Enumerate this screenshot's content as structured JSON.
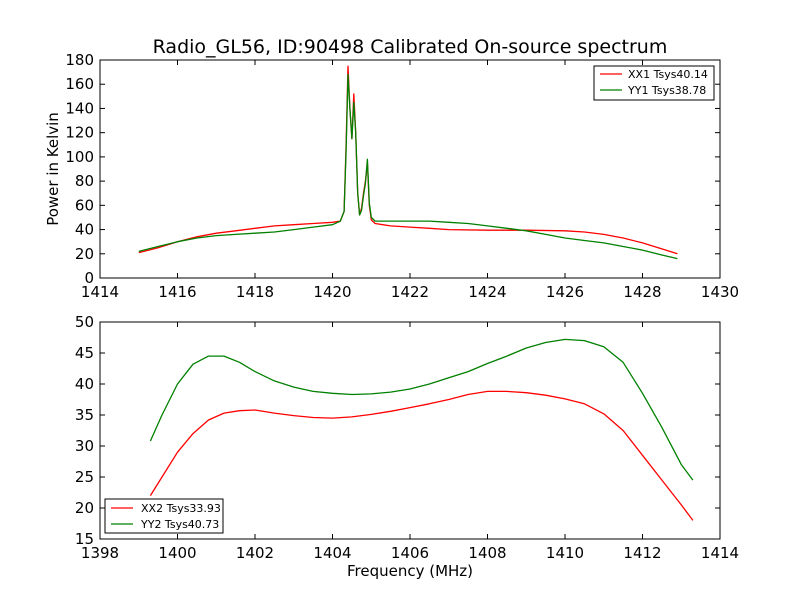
{
  "chart_data": [
    {
      "type": "line",
      "title": "Radio_GL56, ID:90498 Calibrated On-source spectrum",
      "xlabel": "",
      "ylabel": "Power in Kelvin",
      "xlim": [
        1414,
        1430
      ],
      "ylim": [
        0,
        180
      ],
      "xticks": [
        1414,
        1416,
        1418,
        1420,
        1422,
        1424,
        1426,
        1428,
        1430
      ],
      "yticks": [
        0,
        20,
        40,
        60,
        80,
        100,
        120,
        140,
        160,
        180
      ],
      "grid": false,
      "legend": "top-right",
      "series": [
        {
          "name": "XX1 Tsys40.14",
          "color": "#ff0000",
          "x": [
            1415.0,
            1415.5,
            1416.0,
            1416.5,
            1417.0,
            1417.5,
            1418.0,
            1418.5,
            1419.0,
            1419.5,
            1420.0,
            1420.2,
            1420.3,
            1420.35,
            1420.4,
            1420.45,
            1420.5,
            1420.55,
            1420.6,
            1420.65,
            1420.7,
            1420.75,
            1420.8,
            1420.85,
            1420.9,
            1420.95,
            1421.0,
            1421.1,
            1421.5,
            1422.0,
            1422.5,
            1423.0,
            1424.0,
            1425.0,
            1426.0,
            1426.5,
            1427.0,
            1427.5,
            1428.0,
            1428.5,
            1428.9
          ],
          "y": [
            21,
            25,
            30,
            34,
            37,
            39,
            41,
            43,
            44,
            45,
            46,
            47,
            55,
            110,
            175,
            140,
            115,
            152,
            120,
            70,
            52,
            58,
            70,
            80,
            95,
            60,
            48,
            45,
            43,
            42,
            41,
            40,
            39.5,
            39.5,
            39,
            38,
            36,
            33,
            29,
            24,
            20
          ]
        },
        {
          "name": "YY1 Tsys38.78",
          "color": "#008000",
          "x": [
            1415.0,
            1415.5,
            1416.0,
            1416.5,
            1417.0,
            1417.5,
            1418.0,
            1418.5,
            1419.0,
            1419.5,
            1420.0,
            1420.2,
            1420.3,
            1420.35,
            1420.4,
            1420.45,
            1420.5,
            1420.55,
            1420.6,
            1420.65,
            1420.7,
            1420.75,
            1420.8,
            1420.85,
            1420.9,
            1420.95,
            1421.0,
            1421.1,
            1421.5,
            1422.0,
            1422.5,
            1423.0,
            1423.5,
            1424.0,
            1424.5,
            1425.0,
            1425.5,
            1426.0,
            1426.5,
            1427.0,
            1427.5,
            1428.0,
            1428.5,
            1428.9
          ],
          "y": [
            22,
            26,
            30,
            33,
            35,
            36,
            37,
            38,
            40,
            42,
            44,
            47,
            55,
            105,
            168,
            140,
            115,
            145,
            120,
            70,
            52,
            56,
            68,
            78,
            98,
            62,
            50,
            47,
            47,
            47,
            47,
            46,
            45,
            43,
            41,
            39,
            36,
            33,
            31,
            29,
            26,
            23,
            19,
            16
          ]
        }
      ]
    },
    {
      "type": "line",
      "title": "",
      "xlabel": "Frequency (MHz)",
      "ylabel": "",
      "xlim": [
        1398,
        1414
      ],
      "ylim": [
        15,
        50
      ],
      "xticks": [
        1398,
        1400,
        1402,
        1404,
        1406,
        1408,
        1410,
        1412,
        1414
      ],
      "yticks": [
        15,
        20,
        25,
        30,
        35,
        40,
        45,
        50
      ],
      "grid": false,
      "legend": "bottom-left",
      "series": [
        {
          "name": "XX2 Tsys33.93",
          "color": "#ff0000",
          "x": [
            1399.3,
            1399.6,
            1400.0,
            1400.4,
            1400.8,
            1401.2,
            1401.6,
            1402.0,
            1402.5,
            1403.0,
            1403.5,
            1404.0,
            1404.5,
            1405.0,
            1405.5,
            1406.0,
            1406.5,
            1407.0,
            1407.5,
            1408.0,
            1408.5,
            1409.0,
            1409.5,
            1410.0,
            1410.5,
            1411.0,
            1411.5,
            1412.0,
            1412.5,
            1413.0,
            1413.3
          ],
          "y": [
            22,
            25,
            29,
            32,
            34.2,
            35.3,
            35.7,
            35.8,
            35.3,
            34.9,
            34.6,
            34.5,
            34.7,
            35.1,
            35.6,
            36.2,
            36.8,
            37.5,
            38.3,
            38.8,
            38.8,
            38.6,
            38.2,
            37.6,
            36.8,
            35.2,
            32.5,
            28.5,
            24.5,
            20.5,
            18
          ]
        },
        {
          "name": "YY2 Tsys40.73",
          "color": "#008000",
          "x": [
            1399.3,
            1399.6,
            1400.0,
            1400.4,
            1400.8,
            1401.2,
            1401.6,
            1402.0,
            1402.5,
            1403.0,
            1403.5,
            1404.0,
            1404.5,
            1405.0,
            1405.5,
            1406.0,
            1406.5,
            1407.0,
            1407.5,
            1408.0,
            1408.5,
            1409.0,
            1409.5,
            1410.0,
            1410.5,
            1411.0,
            1411.5,
            1412.0,
            1412.5,
            1413.0,
            1413.3
          ],
          "y": [
            30.8,
            35,
            40,
            43.2,
            44.5,
            44.5,
            43.5,
            42,
            40.5,
            39.5,
            38.8,
            38.5,
            38.3,
            38.4,
            38.7,
            39.2,
            40,
            41,
            42,
            43.3,
            44.5,
            45.8,
            46.7,
            47.2,
            47,
            46,
            43.5,
            38.5,
            33,
            27,
            24.5
          ]
        }
      ]
    }
  ]
}
